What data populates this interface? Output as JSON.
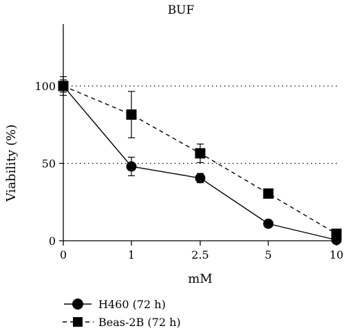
{
  "chart_data": {
    "type": "line",
    "title": "BUF",
    "xlabel": "mM",
    "ylabel": "Viability (%)",
    "categories": [
      "0",
      "1",
      "2.5",
      "5",
      "10"
    ],
    "ylim": [
      0,
      140
    ],
    "yticks": [
      "0",
      "50",
      "100"
    ],
    "grid": "dotted horizontal lines at 50 and 100",
    "legend_position": "bottom-left",
    "series": [
      {
        "name": "H460 (72 h)",
        "marker": "circle",
        "line_style": "solid",
        "values": [
          100,
          48,
          40.5,
          11,
          0.5
        ],
        "errors": [
          6,
          6,
          3,
          0,
          0
        ]
      },
      {
        "name": "Beas-2B (72 h)",
        "marker": "square",
        "line_style": "dashed",
        "values": [
          100,
          81.5,
          56.5,
          30.5,
          4.5
        ],
        "errors": [
          4,
          15,
          6,
          0,
          0
        ]
      }
    ]
  },
  "colors": {
    "ink": "#000000",
    "background": "#ffffff"
  }
}
